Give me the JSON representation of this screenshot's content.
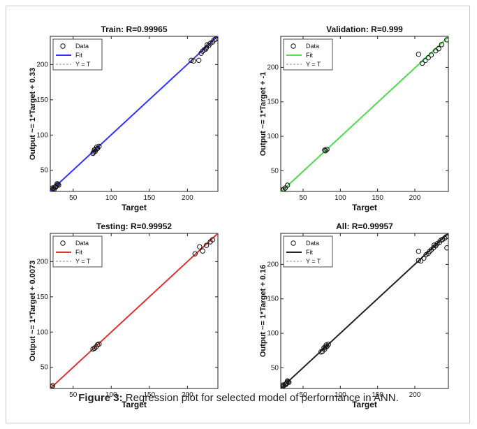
{
  "caption": {
    "label": "Figure 3:",
    "text": "Regression plot for selected model of performance in ANN."
  },
  "chart_data": [
    {
      "type": "scatter",
      "title": "Train: R=0.99965",
      "xlabel": "Target",
      "ylabel": "Output ~= 1*Target + 0.33",
      "xlim": [
        20,
        240
      ],
      "ylim": [
        20,
        240
      ],
      "xticks": [
        50,
        100,
        150,
        200
      ],
      "yticks": [
        50,
        100,
        150,
        200
      ],
      "fit_color": "#3333ff",
      "fit": {
        "slope": 1,
        "intercept": 0.33
      },
      "legend": [
        "Data",
        "Fit",
        "Y = T"
      ],
      "legend_position": "top-left",
      "points": [
        [
          22,
          22
        ],
        [
          24,
          24
        ],
        [
          26,
          26
        ],
        [
          28,
          28
        ],
        [
          30,
          30
        ],
        [
          23,
          25
        ],
        [
          27,
          26
        ],
        [
          25,
          23
        ],
        [
          29,
          31
        ],
        [
          31,
          29
        ],
        [
          76,
          74
        ],
        [
          78,
          79
        ],
        [
          80,
          80
        ],
        [
          82,
          81
        ],
        [
          84,
          84
        ],
        [
          79,
          77
        ],
        [
          77,
          76
        ],
        [
          81,
          83
        ],
        [
          205,
          206
        ],
        [
          208,
          205
        ],
        [
          215,
          206
        ],
        [
          218,
          216
        ],
        [
          220,
          219
        ],
        [
          222,
          221
        ],
        [
          225,
          224
        ],
        [
          228,
          227
        ],
        [
          230,
          230
        ],
        [
          233,
          232
        ],
        [
          235,
          235
        ],
        [
          237,
          236
        ],
        [
          224,
          222
        ],
        [
          226,
          228
        ]
      ]
    },
    {
      "type": "scatter",
      "title": "Validation: R=0.999",
      "xlabel": "Target",
      "ylabel": "Output ~= 1*Target + -1",
      "xlim": [
        20,
        245
      ],
      "ylim": [
        20,
        245
      ],
      "xticks": [
        50,
        100,
        150,
        200
      ],
      "yticks": [
        50,
        100,
        150,
        200
      ],
      "fit_color": "#55dd55",
      "fit": {
        "slope": 1,
        "intercept": -1
      },
      "legend": [
        "Data",
        "Fit",
        "Y = T"
      ],
      "legend_position": "top-left",
      "points": [
        [
          22,
          22
        ],
        [
          24,
          23
        ],
        [
          26,
          25
        ],
        [
          29,
          29
        ],
        [
          80,
          79
        ],
        [
          82,
          81
        ],
        [
          79,
          80
        ],
        [
          205,
          219
        ],
        [
          210,
          206
        ],
        [
          214,
          210
        ],
        [
          218,
          214
        ],
        [
          222,
          218
        ],
        [
          228,
          224
        ],
        [
          232,
          227
        ],
        [
          236,
          233
        ],
        [
          243,
          240
        ]
      ]
    },
    {
      "type": "scatter",
      "title": "Testing: R=0.99952",
      "xlabel": "Target",
      "ylabel": "Output ~= 1*Target + 0.0073",
      "xlim": [
        20,
        240
      ],
      "ylim": [
        20,
        240
      ],
      "xticks": [
        50,
        100,
        150,
        200
      ],
      "yticks": [
        50,
        100,
        150,
        200
      ],
      "fit_color": "#dd3333",
      "fit": {
        "slope": 1,
        "intercept": 0.0073
      },
      "legend": [
        "Data",
        "Fit",
        "Y = T"
      ],
      "legend_position": "top-left",
      "points": [
        [
          22,
          22
        ],
        [
          23,
          24
        ],
        [
          78,
          77
        ],
        [
          80,
          79
        ],
        [
          82,
          82
        ],
        [
          84,
          83
        ],
        [
          76,
          76
        ],
        [
          210,
          211
        ],
        [
          216,
          221
        ],
        [
          220,
          215
        ],
        [
          225,
          223
        ],
        [
          230,
          228
        ],
        [
          233,
          231
        ]
      ]
    },
    {
      "type": "scatter",
      "title": "All: R=0.99957",
      "xlabel": "Target",
      "ylabel": "Output ~= 1*Target + 0.16",
      "xlim": [
        20,
        245
      ],
      "ylim": [
        20,
        245
      ],
      "xticks": [
        50,
        100,
        150,
        200
      ],
      "yticks": [
        50,
        100,
        150,
        200
      ],
      "fit_color": "#222222",
      "fit": {
        "slope": 1,
        "intercept": 0.16
      },
      "legend": [
        "Data",
        "Fit",
        "Y = T"
      ],
      "legend_position": "top-left",
      "points": [
        [
          22,
          22
        ],
        [
          24,
          24
        ],
        [
          26,
          26
        ],
        [
          28,
          28
        ],
        [
          30,
          30
        ],
        [
          23,
          25
        ],
        [
          27,
          26
        ],
        [
          29,
          31
        ],
        [
          31,
          29
        ],
        [
          74,
          73
        ],
        [
          76,
          74
        ],
        [
          78,
          79
        ],
        [
          80,
          80
        ],
        [
          82,
          81
        ],
        [
          84,
          84
        ],
        [
          79,
          77
        ],
        [
          81,
          83
        ],
        [
          205,
          206
        ],
        [
          205,
          219
        ],
        [
          208,
          205
        ],
        [
          212,
          209
        ],
        [
          215,
          214
        ],
        [
          218,
          216
        ],
        [
          220,
          219
        ],
        [
          222,
          221
        ],
        [
          225,
          224
        ],
        [
          228,
          227
        ],
        [
          230,
          230
        ],
        [
          233,
          232
        ],
        [
          235,
          235
        ],
        [
          237,
          236
        ],
        [
          240,
          238
        ],
        [
          242,
          240
        ],
        [
          243,
          224
        ],
        [
          226,
          228
        ]
      ]
    }
  ]
}
